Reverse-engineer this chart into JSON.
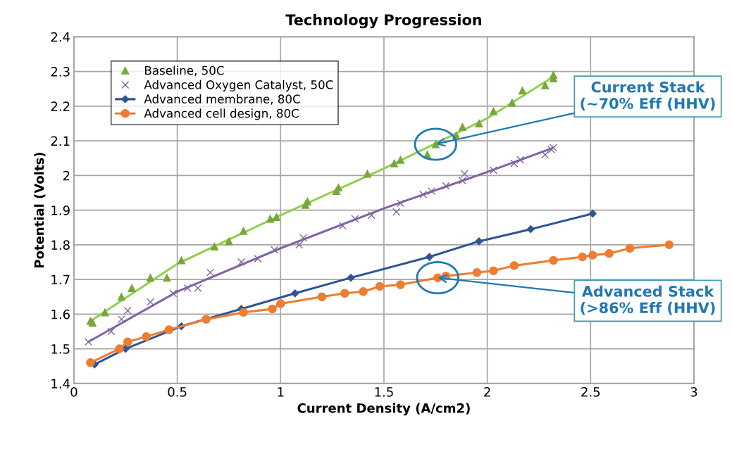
{
  "chart_data": {
    "type": "scatter",
    "title": "Technology Progression",
    "xlabel": "Current Density (A/cm2)",
    "ylabel": "Potential (Volts)",
    "xlim": [
      0,
      3
    ],
    "ylim": [
      1.4,
      2.4
    ],
    "xticks": [
      0,
      0.5,
      1,
      1.5,
      2,
      2.5,
      3
    ],
    "yticks": [
      1.4,
      1.5,
      1.6,
      1.7,
      1.8,
      1.9,
      2,
      2.1,
      2.2,
      2.3,
      2.4
    ],
    "grid": true,
    "legend": "top left",
    "series": [
      {
        "name": "Baseline, 50C",
        "marker": "triangle",
        "color": "#77a83a",
        "x": [
          0.08,
          0.09,
          0.15,
          0.23,
          0.28,
          0.37,
          0.45,
          0.52,
          0.68,
          0.75,
          0.82,
          0.95,
          0.98,
          1.12,
          1.13,
          1.27,
          1.28,
          1.42,
          1.55,
          1.58,
          1.71,
          1.75,
          1.85,
          1.88,
          1.96,
          2.03,
          2.12,
          2.17,
          2.28,
          2.32,
          2.32
        ],
        "values": [
          1.58,
          1.575,
          1.605,
          1.65,
          1.675,
          1.705,
          1.705,
          1.755,
          1.795,
          1.81,
          1.84,
          1.875,
          1.88,
          1.915,
          1.925,
          1.955,
          1.965,
          2.005,
          2.035,
          2.045,
          2.06,
          2.09,
          2.115,
          2.14,
          2.15,
          2.185,
          2.21,
          2.245,
          2.26,
          2.28,
          2.29
        ]
      },
      {
        "name": "Advanced Oxygen Catalyst, 50C",
        "marker": "cross",
        "color": "#8064a2",
        "x": [
          0.07,
          0.18,
          0.23,
          0.26,
          0.37,
          0.48,
          0.55,
          0.6,
          0.66,
          0.81,
          0.89,
          0.97,
          1.09,
          1.11,
          1.3,
          1.36,
          1.44,
          1.56,
          1.58,
          1.69,
          1.73,
          1.8,
          1.88,
          1.89,
          2.03,
          2.13,
          2.16,
          2.28,
          2.31,
          2.32
        ],
        "values": [
          1.52,
          1.55,
          1.585,
          1.61,
          1.635,
          1.66,
          1.675,
          1.675,
          1.72,
          1.75,
          1.76,
          1.785,
          1.8,
          1.82,
          1.855,
          1.875,
          1.885,
          1.895,
          1.92,
          1.945,
          1.955,
          1.97,
          1.985,
          2.005,
          2.015,
          2.035,
          2.045,
          2.06,
          2.075,
          2.08
        ]
      },
      {
        "name": "Advanced membrane, 80C",
        "type": "line",
        "marker": "diamond",
        "color": "#2f5597",
        "x": [
          0.1,
          0.25,
          0.52,
          0.81,
          1.07,
          1.34,
          1.72,
          1.96,
          2.21,
          2.51
        ],
        "values": [
          1.455,
          1.5,
          1.565,
          1.615,
          1.66,
          1.705,
          1.765,
          1.81,
          1.845,
          1.89
        ]
      },
      {
        "name": "Advanced cell design, 80C",
        "type": "line",
        "marker": "circle",
        "color": "#ed7d31",
        "x": [
          0.08,
          0.22,
          0.26,
          0.35,
          0.46,
          0.64,
          0.82,
          0.96,
          1.0,
          1.2,
          1.31,
          1.4,
          1.48,
          1.58,
          1.76,
          1.8,
          1.95,
          2.03,
          2.13,
          2.32,
          2.46,
          2.51,
          2.59,
          2.69,
          2.88
        ],
        "values": [
          1.46,
          1.5,
          1.52,
          1.535,
          1.555,
          1.585,
          1.605,
          1.615,
          1.63,
          1.65,
          1.66,
          1.665,
          1.68,
          1.685,
          1.705,
          1.71,
          1.72,
          1.725,
          1.74,
          1.755,
          1.765,
          1.77,
          1.775,
          1.79,
          1.8
        ]
      },
      {
        "type": "line",
        "marker": "none",
        "color": "#92d050",
        "x": [
          0.08,
          0.5,
          1.0,
          1.5,
          2.0,
          2.32
        ],
        "values": [
          1.58,
          1.745,
          1.885,
          2.02,
          2.165,
          2.285
        ]
      },
      {
        "type": "line",
        "marker": "none",
        "color": "#8064a2",
        "x": [
          0.07,
          0.5,
          1.0,
          1.5,
          2.0,
          2.32
        ],
        "values": [
          1.52,
          1.665,
          1.79,
          1.905,
          2.01,
          2.08
        ]
      }
    ],
    "annotations": [
      {
        "text": "Current Stack\n(~70% Eff (HHV)",
        "x": 1.75,
        "y": 2.09
      },
      {
        "text": "Advanced Stack\n(>86% Eff (HHV)",
        "x": 1.76,
        "y": 1.705
      }
    ]
  }
}
